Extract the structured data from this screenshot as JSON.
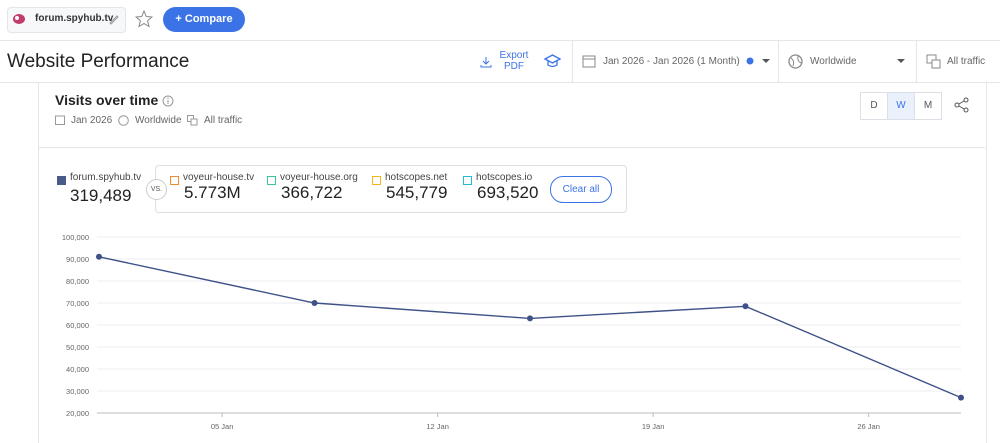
{
  "topbar": {
    "domain": "forum.spyhub.tv",
    "compare_button": "+ Compare"
  },
  "header": {
    "title": "Website Performance",
    "export": "Export PDF",
    "date_range": "Jan 2026 - Jan 2026 (1 Month)",
    "region": "Worldwide",
    "traffic": "All traffic"
  },
  "card": {
    "title": "Visits over time",
    "date": "Jan 2026",
    "region": "Worldwide",
    "traffic": "All traffic",
    "granularity": [
      "D",
      "W",
      "M"
    ],
    "active_granularity": "W",
    "vs_label": "VS.",
    "clear_all": "Clear all",
    "sites": [
      {
        "name": "forum.spyhub.tv",
        "value": "319,489",
        "color": "#4a5a8a",
        "checked": true
      },
      {
        "name": "voyeur-house.tv",
        "value": "5.773M",
        "color": "#f08c2c",
        "checked": false
      },
      {
        "name": "voyeur-house.org",
        "value": "366,722",
        "color": "#3cc49a",
        "checked": false
      },
      {
        "name": "hotscopes.net",
        "value": "545,779",
        "color": "#f2b718",
        "checked": false
      },
      {
        "name": "hotscopes.io",
        "value": "693,520",
        "color": "#27b7d9",
        "checked": false
      }
    ]
  },
  "chart_data": {
    "type": "line",
    "color": "#3f5288",
    "x": [
      1,
      8,
      15,
      22,
      29
    ],
    "values": [
      91000,
      70000,
      63000,
      68500,
      27000
    ],
    "xlim": [
      1,
      29
    ],
    "xticks": [
      {
        "value": 5,
        "label": "05 Jan"
      },
      {
        "value": 12,
        "label": "12 Jan"
      },
      {
        "value": 19,
        "label": "19 Jan"
      },
      {
        "value": 26,
        "label": "26 Jan"
      }
    ],
    "ylim": [
      20000,
      100000
    ],
    "yticks": [
      {
        "value": 20000,
        "label": "20,000"
      },
      {
        "value": 30000,
        "label": "30,000"
      },
      {
        "value": 40000,
        "label": "40,000"
      },
      {
        "value": 50000,
        "label": "50,000"
      },
      {
        "value": 60000,
        "label": "60,000"
      },
      {
        "value": 70000,
        "label": "70,000"
      },
      {
        "value": 80000,
        "label": "80,000"
      },
      {
        "value": 90000,
        "label": "90,000"
      },
      {
        "value": 100000,
        "label": "100,000"
      }
    ],
    "grid": true
  }
}
